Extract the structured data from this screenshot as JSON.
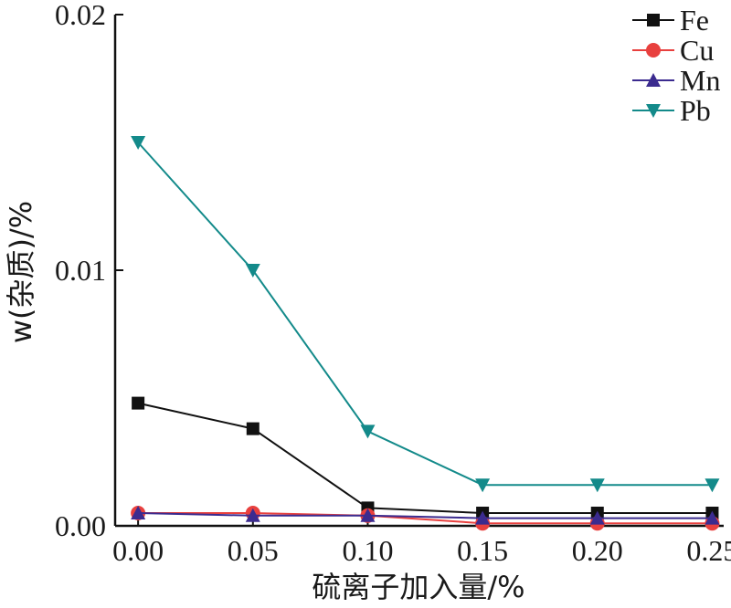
{
  "chart_data": {
    "type": "line",
    "xlabel": "硫离子加入量/%",
    "ylabel": "w(杂质)/%",
    "xlim": [
      -0.01,
      0.255
    ],
    "ylim": [
      0,
      0.02
    ],
    "x_ticks": [
      "0.00",
      "0.05",
      "0.10",
      "0.15",
      "0.20",
      "0.25"
    ],
    "y_ticks": [
      "0.00",
      "0.01",
      "0.02"
    ],
    "legend_position": "top-right",
    "grid": false,
    "x": [
      0.0,
      0.05,
      0.1,
      0.15,
      0.2,
      0.25
    ],
    "series": [
      {
        "name": "Fe",
        "marker": "square",
        "color": "#111111",
        "values": [
          0.0048,
          0.0038,
          0.0007,
          0.0005,
          0.0005,
          0.0005
        ]
      },
      {
        "name": "Cu",
        "marker": "circle",
        "color": "#e8403e",
        "values": [
          0.0005,
          0.0005,
          0.0004,
          0.0001,
          0.0001,
          0.0001
        ]
      },
      {
        "name": "Mn",
        "marker": "triangle-up",
        "color": "#3b2b8f",
        "values": [
          0.0005,
          0.0004,
          0.0004,
          0.0003,
          0.0003,
          0.0003
        ]
      },
      {
        "name": "Pb",
        "marker": "triangle-down",
        "color": "#138a8a",
        "values": [
          0.015,
          0.01,
          0.0037,
          0.0016,
          0.0016,
          0.0016
        ]
      }
    ]
  }
}
